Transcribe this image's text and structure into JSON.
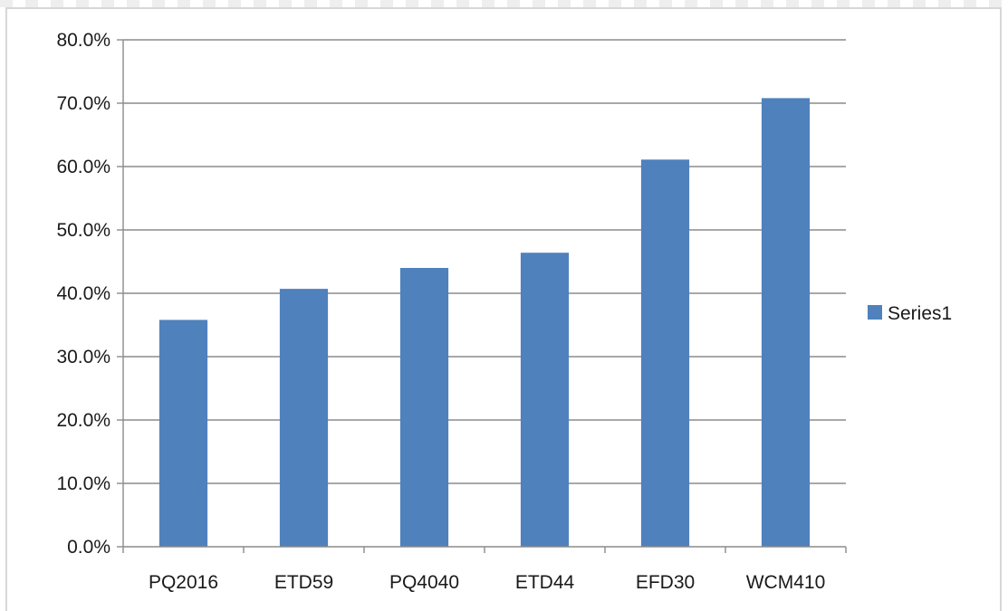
{
  "chart_data": {
    "type": "bar",
    "categories": [
      "PQ2016",
      "ETD59",
      "PQ4040",
      "ETD44",
      "EFD30",
      "WCM410"
    ],
    "series": [
      {
        "name": "Series1",
        "values": [
          35.8,
          40.7,
          44.0,
          46.4,
          61.1,
          70.8
        ],
        "color": "#4f81bd"
      }
    ],
    "ylim": [
      0,
      80
    ],
    "yticks": [
      "0.0%",
      "10.0%",
      "20.0%",
      "30.0%",
      "40.0%",
      "50.0%",
      "60.0%",
      "70.0%",
      "80.0%"
    ],
    "ytick_values": [
      0,
      10,
      20,
      30,
      40,
      50,
      60,
      70,
      80
    ],
    "grid": true,
    "legend_position": "right",
    "gridline_color": "#8c8c8c",
    "axis_color": "#8c8c8c"
  }
}
